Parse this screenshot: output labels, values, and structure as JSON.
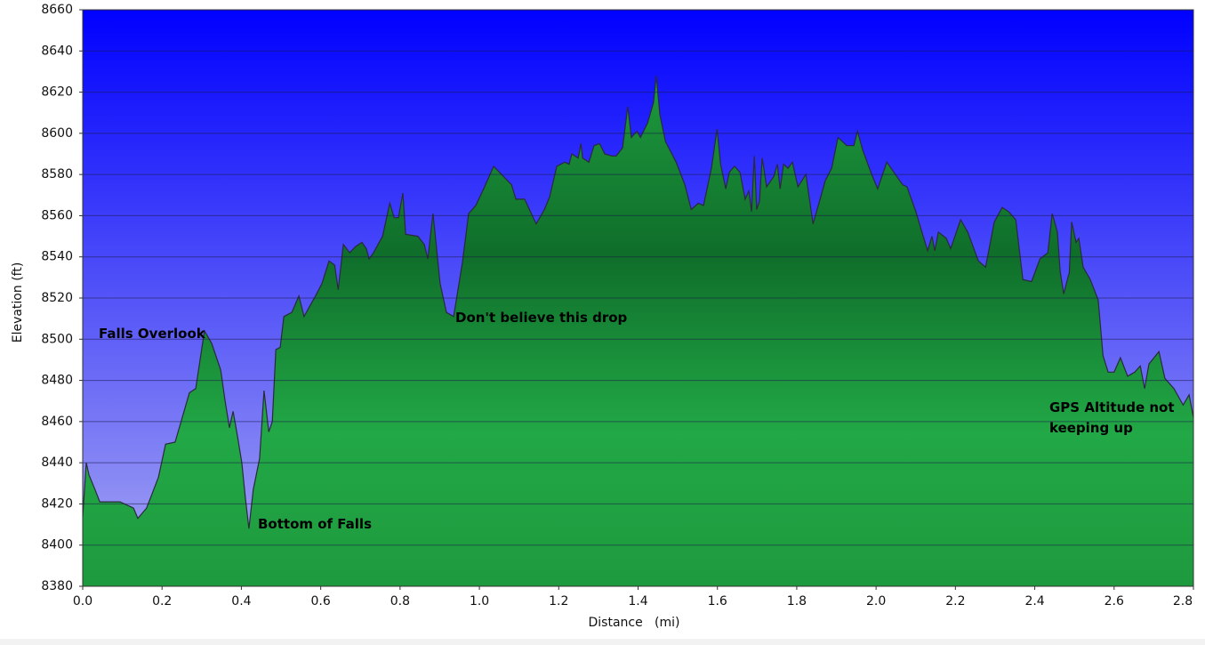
{
  "chart_data": {
    "type": "area",
    "x_label": "Distance   (mi)",
    "y_label": "Elevation (ft)",
    "x": [
      0,
      0.009,
      0.016,
      0.031,
      0.043,
      0.094,
      0.128,
      0.139,
      0.161,
      0.173,
      0.191,
      0.209,
      0.233,
      0.251,
      0.269,
      0.285,
      0.307,
      0.325,
      0.348,
      0.359,
      0.37,
      0.379,
      0.39,
      0.401,
      0.41,
      0.419,
      0.43,
      0.446,
      0.457,
      0.469,
      0.478,
      0.487,
      0.498,
      0.507,
      0.527,
      0.545,
      0.558,
      0.572,
      0.587,
      0.603,
      0.621,
      0.635,
      0.644,
      0.657,
      0.673,
      0.688,
      0.704,
      0.715,
      0.722,
      0.733,
      0.756,
      0.774,
      0.785,
      0.796,
      0.807,
      0.814,
      0.845,
      0.861,
      0.87,
      0.883,
      0.901,
      0.917,
      0.935,
      0.957,
      0.973,
      0.991,
      1.013,
      1.036,
      1.081,
      1.092,
      1.114,
      1.126,
      1.143,
      1.164,
      1.177,
      1.195,
      1.215,
      1.226,
      1.233,
      1.249,
      1.256,
      1.26,
      1.276,
      1.289,
      1.303,
      1.316,
      1.334,
      1.345,
      1.361,
      1.374,
      1.383,
      1.397,
      1.406,
      1.424,
      1.439,
      1.446,
      1.455,
      1.469,
      1.496,
      1.518,
      1.534,
      1.552,
      1.565,
      1.585,
      1.599,
      1.608,
      1.621,
      1.63,
      1.643,
      1.657,
      1.67,
      1.679,
      1.686,
      1.693,
      1.699,
      1.706,
      1.713,
      1.724,
      1.742,
      1.751,
      1.758,
      1.767,
      1.778,
      1.789,
      1.803,
      1.823,
      1.841,
      1.859,
      1.872,
      1.888,
      1.904,
      1.926,
      1.944,
      1.953,
      1.966,
      1.989,
      2.004,
      2.027,
      2.045,
      2.067,
      2.078,
      2.1,
      2.114,
      2.13,
      2.141,
      2.148,
      2.157,
      2.177,
      2.188,
      2.213,
      2.231,
      2.258,
      2.276,
      2.298,
      2.318,
      2.334,
      2.352,
      2.37,
      2.392,
      2.413,
      2.433,
      2.444,
      2.457,
      2.464,
      2.473,
      2.485,
      2.487,
      2.493,
      2.504,
      2.511,
      2.522,
      2.54,
      2.56,
      2.572,
      2.585,
      2.6,
      2.616,
      2.634,
      2.652,
      2.666,
      2.677,
      2.688,
      2.713,
      2.728,
      2.751,
      2.774,
      2.789,
      2.8
    ],
    "values": [
      8414,
      8440,
      8434,
      8427,
      8421,
      8421,
      8418,
      8413,
      8418,
      8424,
      8433,
      8449,
      8450,
      8462,
      8474,
      8476,
      8504,
      8498,
      8485,
      8470,
      8457,
      8465,
      8453,
      8440,
      8423,
      8408,
      8427,
      8442,
      8475,
      8455,
      8460,
      8495,
      8496,
      8511,
      8513,
      8521,
      8511,
      8516,
      8521,
      8527,
      8538,
      8536,
      8524,
      8546,
      8542,
      8545,
      8547,
      8544,
      8539,
      8542,
      8550,
      8566,
      8559,
      8559,
      8571,
      8551,
      8550,
      8546,
      8539,
      8561,
      8527,
      8513,
      8511,
      8537,
      8561,
      8565,
      8574,
      8584,
      8575,
      8568,
      8568,
      8563,
      8556,
      8563,
      8569,
      8584,
      8586,
      8585,
      8590,
      8588,
      8595,
      8588,
      8586,
      8594,
      8595,
      8590,
      8589,
      8589,
      8593,
      8613,
      8598,
      8601,
      8598,
      8605,
      8615,
      8628,
      8609,
      8596,
      8586,
      8575,
      8563,
      8566,
      8565,
      8583,
      8602,
      8585,
      8573,
      8581,
      8584,
      8581,
      8568,
      8572,
      8562,
      8589,
      8563,
      8567,
      8588,
      8574,
      8579,
      8585,
      8573,
      8585,
      8583,
      8586,
      8574,
      8580,
      8556,
      8568,
      8577,
      8583,
      8598,
      8594,
      8594,
      8601,
      8592,
      8580,
      8573,
      8586,
      8581,
      8575,
      8574,
      8562,
      8553,
      8543,
      8550,
      8543,
      8552,
      8549,
      8544,
      8558,
      8552,
      8538,
      8535,
      8557,
      8564,
      8562,
      8558,
      8529,
      8528,
      8539,
      8542,
      8561,
      8552,
      8533,
      8522,
      8531,
      8532,
      8557,
      8547,
      8549,
      8535,
      8529,
      8519,
      8492,
      8484,
      8484,
      8491,
      8482,
      8484,
      8487,
      8476,
      8488,
      8494,
      8481,
      8476,
      8468,
      8473,
      8462
    ],
    "color": "#22a846",
    "xlim": [
      0,
      2.8
    ],
    "xticks": [
      {
        "value": 0,
        "label": "0.0"
      },
      0.2,
      0.4,
      0.6,
      0.8,
      {
        "value": 1,
        "label": "1.0"
      },
      1.2,
      1.4,
      1.6,
      1.8,
      {
        "value": 2,
        "label": "2.0"
      },
      2.2,
      2.4,
      2.6,
      2.8
    ],
    "ylim": [
      8380,
      8660
    ],
    "yticks": [
      8380,
      8400,
      8420,
      8440,
      8460,
      8480,
      8500,
      8520,
      8540,
      8560,
      8580,
      8600,
      8620,
      8640,
      8660
    ],
    "grid": true,
    "annotations": [
      "Falls Overlook",
      "Bottom of Falls",
      "Don't believe this drop",
      "GPS Altitude not keeping up"
    ]
  }
}
